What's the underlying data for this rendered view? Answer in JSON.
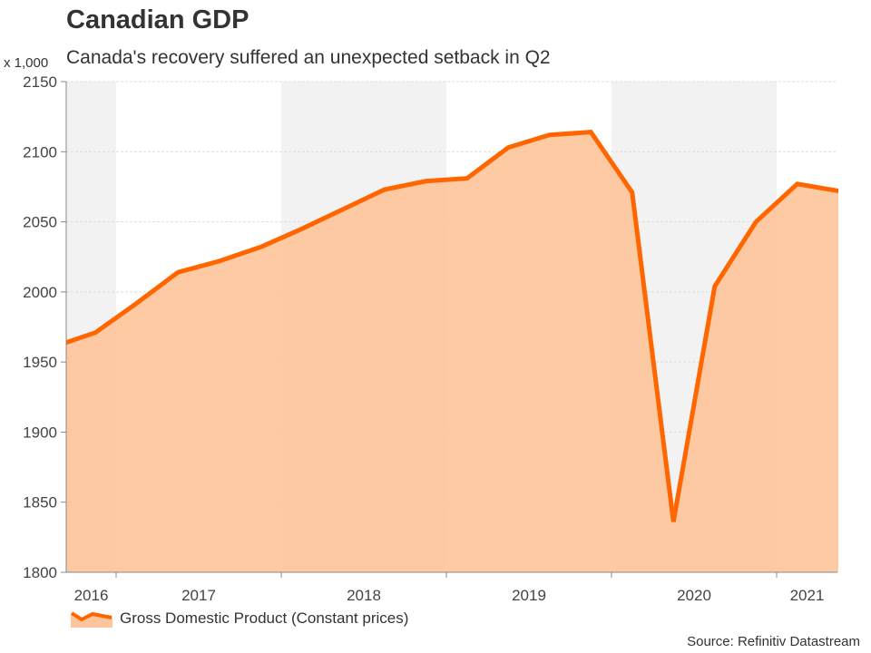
{
  "header": {
    "title": "Canadian GDP",
    "subtitle": "Canada's recovery suffered an unexpected setback in Q2",
    "unit_label": "x 1,000"
  },
  "footer": {
    "source": "Source: Refinitiv Datastream"
  },
  "colors": {
    "line": "#ff6600",
    "area": "#fdc59c",
    "band": "#f2f2f2",
    "grid": "#dddddd",
    "axis": "#888888"
  },
  "chart_data": {
    "type": "area",
    "title": "Canadian GDP",
    "subtitle": "Canada's recovery suffered an unexpected setback in Q2",
    "ylabel": "x 1,000",
    "xlabel": "",
    "ylim": [
      1800,
      2150
    ],
    "yticks": [
      1800,
      1850,
      1900,
      1950,
      2000,
      2050,
      2100,
      2150
    ],
    "grid": true,
    "legend_position": "bottom-left",
    "year_labels": [
      "2016",
      "2017",
      "2018",
      "2019",
      "2020",
      "2021"
    ],
    "x": [
      "2016 Q3",
      "2016 Q4",
      "2017 Q1",
      "2017 Q2",
      "2017 Q3",
      "2017 Q4",
      "2018 Q1",
      "2018 Q2",
      "2018 Q3",
      "2018 Q4",
      "2019 Q1",
      "2019 Q2",
      "2019 Q3",
      "2019 Q4",
      "2020 Q1",
      "2020 Q2",
      "2020 Q3",
      "2020 Q4",
      "2021 Q1",
      "2021 Q2"
    ],
    "series": [
      {
        "name": "Gross Domestic Product (Constant prices)",
        "values": [
          1961,
          1971,
          1992,
          2014,
          2022,
          2032,
          2045,
          2059,
          2073,
          2079,
          2081,
          2103,
          2112,
          2114,
          2071,
          1836,
          2004,
          2050,
          2077,
          2072
        ]
      }
    ]
  }
}
